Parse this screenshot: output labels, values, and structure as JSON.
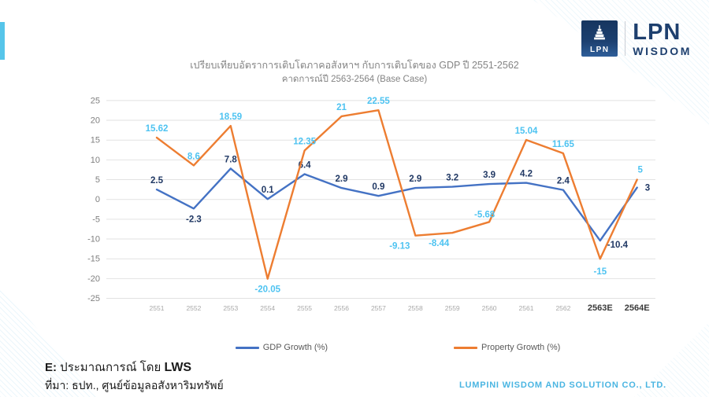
{
  "header": {
    "title_line1": "เปรียบเทียบอัตราการเติบโตภาคอสังหาฯ กับการเติบโตของ GDP ปี 2551-2562",
    "title_line2": "คาดการณ์ปี 2563-2564 (Base Case)"
  },
  "logo": {
    "badge_text": "LPN",
    "brand": "LPN",
    "sub_brand": "WISDOM"
  },
  "chart_data": {
    "type": "line",
    "categories": [
      "2551",
      "2552",
      "2553",
      "2554",
      "2555",
      "2556",
      "2557",
      "2558",
      "2559",
      "2560",
      "2561",
      "2562",
      "2563E",
      "2564E"
    ],
    "series": [
      {
        "name": "GDP Growth (%)",
        "color": "#4472C4",
        "label_color": "#203864",
        "values": [
          2.5,
          -2.3,
          7.8,
          0.1,
          6.4,
          2.9,
          0.9,
          2.9,
          3.2,
          3.9,
          4.2,
          2.4,
          -10.4,
          3
        ]
      },
      {
        "name": "Property Growth (%)",
        "color": "#ED7D31",
        "label_color": "#4EC3F1",
        "values": [
          15.62,
          8.6,
          18.59,
          -20.05,
          12.35,
          21,
          22.55,
          -9.13,
          -8.44,
          -5.68,
          15.04,
          11.65,
          -15,
          5
        ]
      }
    ],
    "ylim": [
      -25,
      25
    ],
    "ytick_step": 5,
    "grid": true,
    "legend_position": "bottom"
  },
  "legend": {
    "items": [
      {
        "label": "GDP Growth (%)",
        "color": "#4472C4"
      },
      {
        "label": "Property Growth (%)",
        "color": "#ED7D31"
      }
    ]
  },
  "footer": {
    "note1_e": "E:",
    "note1_mid": " ประมาณการณ์ โดย ",
    "note1_lws": "LWS",
    "note_line2": "ที่มา: ธปท., ศูนย์ข้อมูลอสังหาริมทรัพย์",
    "company": "LUMPINI WISDOM AND SOLUTION CO., LTD."
  },
  "colors": {
    "accent_bar": "#56C5EA",
    "gridline": "#E2E2E2",
    "logo_navy": "#1D3F6E",
    "company_text": "#4AB5E2"
  }
}
